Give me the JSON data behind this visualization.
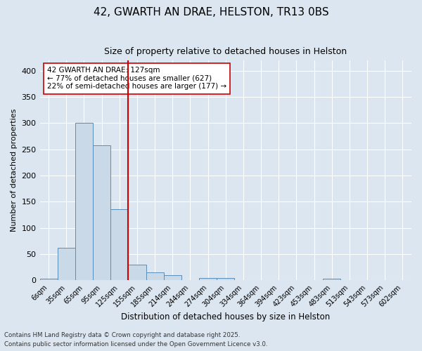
{
  "title1": "42, GWARTH AN DRAE, HELSTON, TR13 0BS",
  "title2": "Size of property relative to detached houses in Helston",
  "xlabel": "Distribution of detached houses by size in Helston",
  "ylabel": "Number of detached properties",
  "bar_labels": [
    "6sqm",
    "35sqm",
    "65sqm",
    "95sqm",
    "125sqm",
    "155sqm",
    "185sqm",
    "214sqm",
    "244sqm",
    "274sqm",
    "304sqm",
    "334sqm",
    "364sqm",
    "394sqm",
    "423sqm",
    "453sqm",
    "483sqm",
    "513sqm",
    "543sqm",
    "573sqm",
    "602sqm"
  ],
  "bar_values": [
    3,
    62,
    300,
    258,
    135,
    30,
    15,
    10,
    0,
    4,
    4,
    0,
    0,
    0,
    0,
    0,
    3,
    0,
    0,
    0,
    0
  ],
  "bar_color": "#c9d9e8",
  "bar_edge_color": "#5b8db8",
  "property_line_x": 4.5,
  "property_line_color": "#cc0000",
  "annotation_text": "42 GWARTH AN DRAE: 127sqm\n← 77% of detached houses are smaller (627)\n22% of semi-detached houses are larger (177) →",
  "annotation_box_color": "#ffffff",
  "annotation_box_edge": "#cc0000",
  "ylim": [
    0,
    420
  ],
  "yticks": [
    0,
    50,
    100,
    150,
    200,
    250,
    300,
    350,
    400
  ],
  "footer1": "Contains HM Land Registry data © Crown copyright and database right 2025.",
  "footer2": "Contains public sector information licensed under the Open Government Licence v3.0.",
  "bg_color": "#dce6f0",
  "grid_color": "#ffffff"
}
